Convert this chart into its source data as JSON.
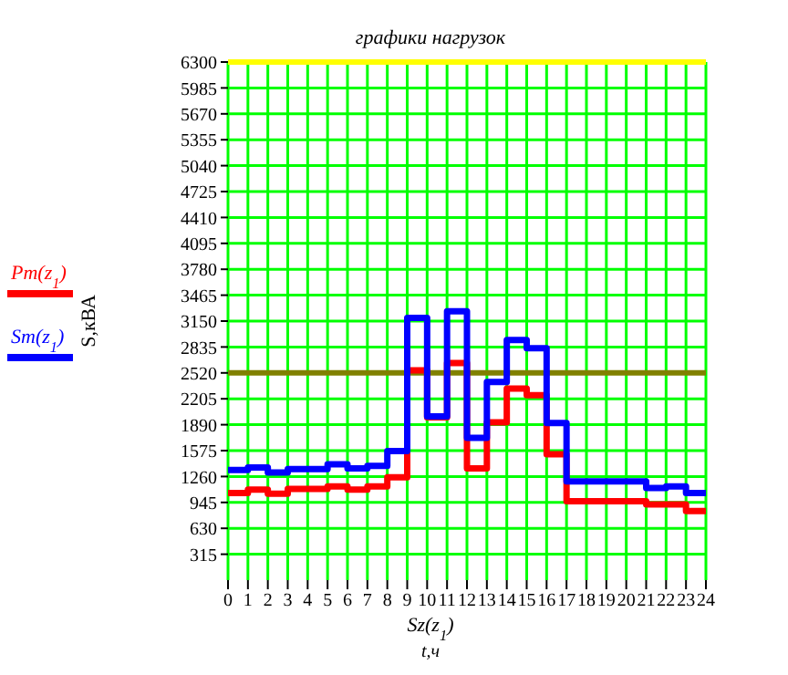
{
  "chart_data": {
    "type": "step",
    "title": "графики нагрузок",
    "xlabel": "Sz(z$_{1}$)",
    "ylabel": "S,кВА",
    "annotations": [
      "t,ч"
    ],
    "x": [
      0,
      1,
      2,
      3,
      4,
      5,
      6,
      7,
      8,
      9,
      10,
      11,
      12,
      13,
      14,
      15,
      16,
      17,
      18,
      19,
      20,
      21,
      22,
      23,
      24
    ],
    "series": [
      {
        "name": "Pm(z$_{1}$)",
        "color": "#ff0000",
        "values": [
          1060,
          1100,
          1050,
          1110,
          1110,
          1140,
          1100,
          1140,
          1250,
          2550,
          1980,
          2640,
          1360,
          1920,
          2330,
          2250,
          1530,
          960,
          960,
          960,
          960,
          920,
          920,
          840,
          840
        ]
      },
      {
        "name": "Sm(z$_{1}$)",
        "color": "#0000ff",
        "values": [
          1340,
          1370,
          1310,
          1350,
          1350,
          1410,
          1360,
          1390,
          1570,
          3190,
          1990,
          3270,
          1730,
          2410,
          2920,
          2820,
          1910,
          1200,
          1200,
          1200,
          1200,
          1120,
          1140,
          1060,
          1060
        ]
      }
    ],
    "xlim": [
      0,
      24
    ],
    "xticks": [
      0,
      1,
      2,
      3,
      4,
      5,
      6,
      7,
      8,
      9,
      10,
      11,
      12,
      13,
      14,
      15,
      16,
      17,
      18,
      19,
      20,
      21,
      22,
      23,
      24
    ],
    "ylim": [
      0,
      6300
    ],
    "yticks": [
      315,
      630,
      945,
      1260,
      1575,
      1890,
      2205,
      2520,
      2835,
      3150,
      3465,
      3780,
      4095,
      4410,
      4725,
      5040,
      5355,
      5670,
      5985,
      6300
    ],
    "ref_lines": [
      {
        "axis": "y",
        "value": 6300,
        "color": "#ffff00"
      },
      {
        "axis": "y",
        "value": 2520,
        "color": "#808000"
      }
    ],
    "grid": true,
    "legend": "left",
    "line_style": "solid",
    "marker": "none"
  }
}
